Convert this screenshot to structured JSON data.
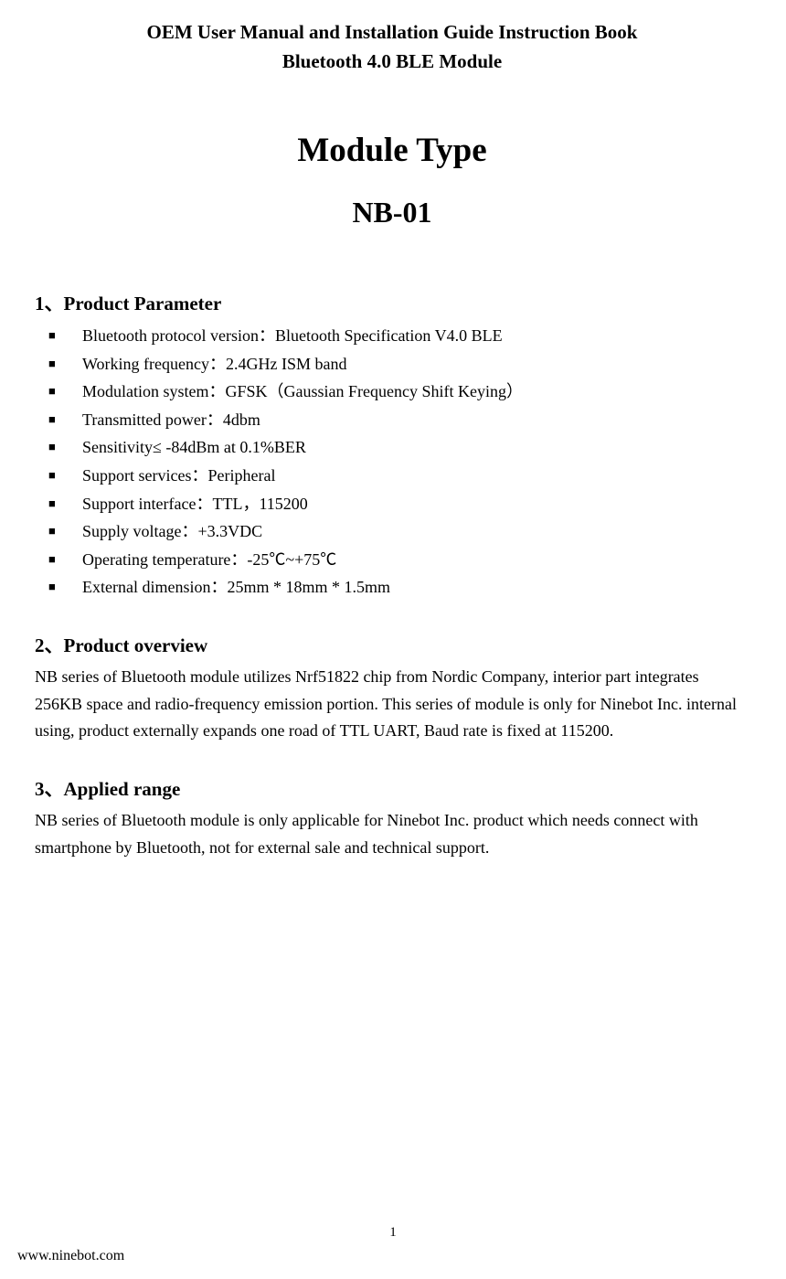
{
  "header": {
    "line1": "OEM User Manual and Installation Guide Instruction Book",
    "line2": "Bluetooth 4.0 BLE Module"
  },
  "title": {
    "main": "Module Type",
    "sub": "NB-01"
  },
  "sections": {
    "s1": {
      "heading": "1、Product Parameter",
      "items": [
        "Bluetooth protocol version：Bluetooth Specification V4.0 BLE",
        "Working frequency：2.4GHz ISM band",
        "Modulation system：GFSK（Gaussian Frequency Shift Keying）",
        "Transmitted power：4dbm",
        "Sensitivity≤ -84dBm at 0.1%BER",
        "Support services：Peripheral",
        "Support interface：TTL，115200",
        "Supply voltage：+3.3VDC",
        "Operating temperature：-25℃~+75℃",
        "External dimension：25mm * 18mm * 1.5mm"
      ]
    },
    "s2": {
      "heading": "2、Product overview",
      "body": "NB series of Bluetooth module utilizes Nrf51822 chip from Nordic Company, interior part integrates 256KB space and radio-frequency emission portion. This series of module is only for Ninebot Inc. internal using, product externally expands one road of TTL UART, Baud rate is fixed at 115200."
    },
    "s3": {
      "heading": "3、Applied range",
      "body": "NB series of Bluetooth module is only applicable for Ninebot Inc. product which needs connect with smartphone by Bluetooth, not for external sale and technical support."
    }
  },
  "footer": {
    "page_number": "1",
    "url": "www.ninebot.com"
  }
}
